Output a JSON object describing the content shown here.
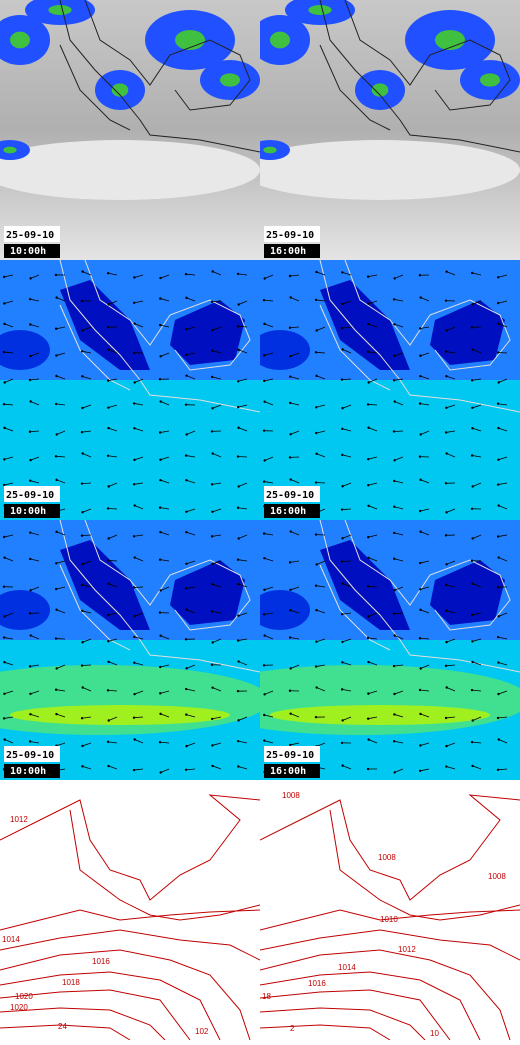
{
  "panels": [
    {
      "date": "25-09-10",
      "time": "10:00h"
    },
    {
      "date": "25-09-10",
      "time": "16:00h"
    },
    {
      "date": "25-09-10",
      "time": "10:00h"
    },
    {
      "date": "25-09-10",
      "time": "16:00h"
    },
    {
      "date": "25-09-10",
      "time": "10:00h"
    },
    {
      "date": "25-09-10",
      "time": "16:00h"
    }
  ],
  "isobars": {
    "left": [
      "1012",
      "1014",
      "1016",
      "1018",
      "1020",
      "1020",
      "24",
      "102"
    ],
    "right": [
      "1008",
      "1008",
      "1008",
      "1010",
      "1012",
      "1014",
      "1016",
      "18",
      "2",
      "10"
    ]
  }
}
